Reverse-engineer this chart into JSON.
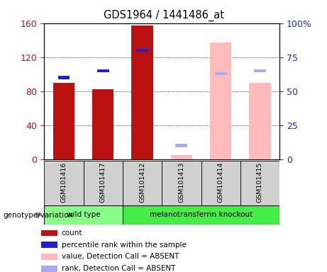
{
  "title": "GDS1964 / 1441486_at",
  "samples": [
    "GSM101416",
    "GSM101417",
    "GSM101412",
    "GSM101413",
    "GSM101414",
    "GSM101415"
  ],
  "count_values": [
    90,
    82,
    157,
    null,
    null,
    null
  ],
  "count_absent_values": [
    null,
    null,
    null,
    5,
    137,
    90
  ],
  "percentile_present": [
    60,
    65,
    80,
    null,
    null,
    null
  ],
  "percentile_absent": [
    null,
    null,
    null,
    10,
    63,
    65
  ],
  "left_ylim": [
    0,
    160
  ],
  "right_ylim": [
    0,
    100
  ],
  "left_yticks": [
    0,
    40,
    80,
    120,
    160
  ],
  "right_yticks": [
    0,
    25,
    50,
    75,
    100
  ],
  "right_yticklabels": [
    "0",
    "25",
    "50",
    "75",
    "100%"
  ],
  "bar_color_present": "#bb1111",
  "bar_color_absent": "#ffbbbb",
  "percentile_color_present": "#2222cc",
  "percentile_color_absent": "#aaaaee",
  "bar_width": 0.55,
  "wild_type_label": "wild type",
  "knockout_label": "melanotransferrin knockout",
  "genotype_label": "genotype/variation",
  "background_color": "#d0d0d0",
  "wt_box_color": "#88ff88",
  "ko_box_color": "#44ee44",
  "legend_items": [
    "count",
    "percentile rank within the sample",
    "value, Detection Call = ABSENT",
    "rank, Detection Call = ABSENT"
  ],
  "legend_colors": [
    "#bb1111",
    "#2222cc",
    "#ffbbbb",
    "#aaaaee"
  ]
}
